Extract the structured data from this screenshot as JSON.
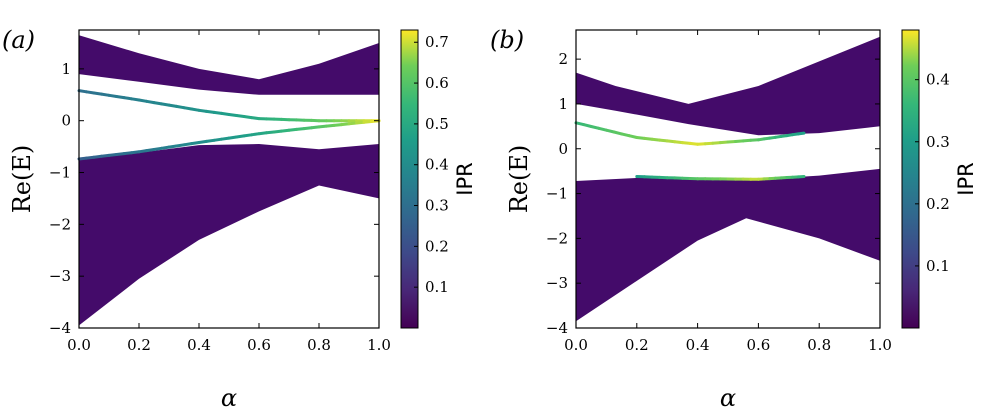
{
  "chart_data": [
    {
      "panel_label": "(a)",
      "type": "area",
      "xlabel": "α",
      "ylabel": "Re(E)",
      "xlim": [
        0.0,
        1.0
      ],
      "ylim": [
        -4.0,
        1.75
      ],
      "xticks": [
        0.0,
        0.2,
        0.4,
        0.6,
        0.8,
        1.0
      ],
      "yticks": [
        -4,
        -3,
        -2,
        -1,
        0,
        1
      ],
      "colorbar": {
        "label": "IPR",
        "range": [
          0.0,
          0.73
        ],
        "ticks": [
          0.1,
          0.2,
          0.3,
          0.4,
          0.5,
          0.6,
          0.7
        ]
      },
      "bands": [
        {
          "x": [
            0.0,
            0.2,
            0.4,
            0.6,
            0.8,
            1.0
          ],
          "upper": [
            1.65,
            1.3,
            1.0,
            0.8,
            1.1,
            1.5
          ],
          "lower": [
            0.9,
            0.75,
            0.6,
            0.5,
            0.5,
            0.5
          ]
        },
        {
          "x": [
            0.0,
            0.2,
            0.4,
            0.6,
            0.8,
            1.0
          ],
          "upper": [
            -0.75,
            -0.62,
            -0.47,
            -0.45,
            -0.55,
            -0.45
          ],
          "lower": [
            -3.95,
            -3.05,
            -2.3,
            -1.75,
            -1.25,
            -1.5
          ]
        }
      ],
      "edge_states": [
        {
          "x": [
            0.0,
            0.2,
            0.4,
            0.6,
            0.8,
            1.0
          ],
          "y": [
            0.58,
            0.4,
            0.2,
            0.04,
            0.0,
            0.0
          ],
          "ipr": [
            0.3,
            0.36,
            0.42,
            0.5,
            0.62,
            0.72
          ]
        },
        {
          "x": [
            0.0,
            0.2,
            0.4,
            0.6,
            0.8,
            1.0
          ],
          "y": [
            -0.74,
            -0.6,
            -0.42,
            -0.25,
            -0.12,
            0.0
          ],
          "ipr": [
            0.25,
            0.32,
            0.4,
            0.48,
            0.6,
            0.72
          ]
        }
      ]
    },
    {
      "panel_label": "(b)",
      "type": "area",
      "xlabel": "α",
      "ylabel": "Re(E)",
      "xlim": [
        0.0,
        1.0
      ],
      "ylim": [
        -4.0,
        2.65
      ],
      "xticks": [
        0.0,
        0.2,
        0.4,
        0.6,
        0.8,
        1.0
      ],
      "yticks": [
        -4,
        -3,
        -2,
        -1,
        0,
        1,
        2
      ],
      "colorbar": {
        "label": "IPR",
        "range": [
          0.0,
          0.48
        ],
        "ticks": [
          0.1,
          0.2,
          0.3,
          0.4
        ]
      },
      "bands": [
        {
          "x": [
            0.0,
            0.13,
            0.37,
            0.6,
            0.8,
            1.0
          ],
          "upper": [
            1.7,
            1.4,
            1.0,
            1.4,
            1.95,
            2.5
          ],
          "lower": [
            1.0,
            0.85,
            0.55,
            0.3,
            0.35,
            0.5
          ]
        },
        {
          "x": [
            0.0,
            0.2,
            0.4,
            0.56,
            0.8,
            1.0
          ],
          "upper": [
            -0.72,
            -0.65,
            -0.65,
            -0.7,
            -0.6,
            -0.45
          ],
          "lower": [
            -3.85,
            -2.95,
            -2.05,
            -1.55,
            -2.0,
            -2.5
          ]
        }
      ],
      "edge_states": [
        {
          "x": [
            0.0,
            0.2,
            0.4,
            0.6,
            0.75
          ],
          "y": [
            0.58,
            0.25,
            0.1,
            0.2,
            0.35
          ],
          "ipr": [
            0.36,
            0.42,
            0.47,
            0.4,
            0.3
          ]
        },
        {
          "x": [
            0.2,
            0.4,
            0.6,
            0.75
          ],
          "y": [
            -0.62,
            -0.67,
            -0.68,
            -0.62
          ],
          "ipr": [
            0.3,
            0.4,
            0.46,
            0.35
          ]
        }
      ]
    }
  ],
  "colors": {
    "band": "#440b6a",
    "frame": "#000000"
  }
}
